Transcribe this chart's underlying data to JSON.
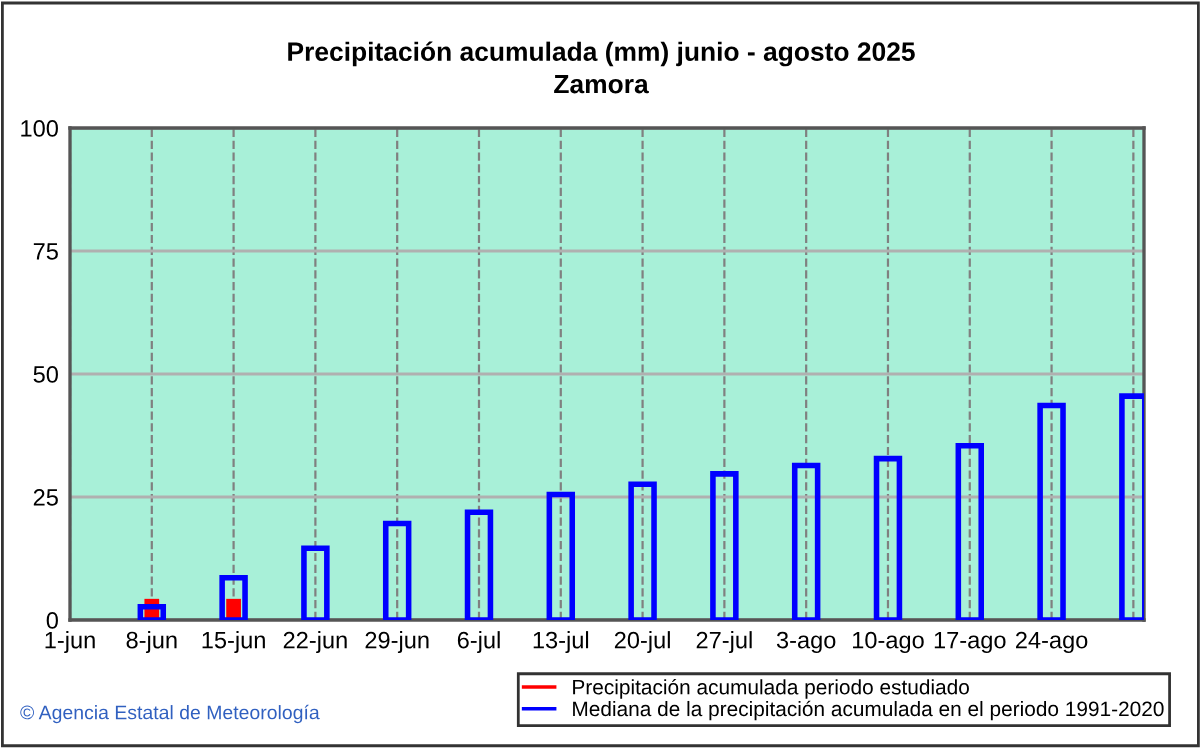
{
  "chart_data": {
    "type": "bar",
    "title": "Precipitación acumulada (mm) junio - agosto 2025\nZamora",
    "categories": [
      "1-jun",
      "8-jun",
      "15-jun",
      "22-jun",
      "29-jun",
      "6-jul",
      "13-jul",
      "20-jul",
      "27-jul",
      "3-ago",
      "10-ago",
      "17-ago",
      "24-ago",
      null
    ],
    "series": [
      {
        "name": "Precipitación acumulada periodo estudiado",
        "color": "#ff0000",
        "values": [
          null,
          4.3,
          4.3,
          null,
          null,
          null,
          null,
          null,
          null,
          null,
          null,
          null,
          null,
          null
        ]
      },
      {
        "name": "Mediana de la precipitación acumulada en el periodo 1991-2020",
        "color": "#0000ff",
        "values": [
          null,
          2.7,
          8.6,
          14.6,
          19.6,
          21.9,
          25.5,
          27.6,
          29.7,
          31.4,
          32.8,
          35.4,
          43.6,
          45.5
        ]
      }
    ],
    "ylim": [
      0,
      100
    ],
    "yticks": [
      0,
      25,
      50,
      75,
      100
    ],
    "grid": true,
    "legend": "bottom",
    "annotations": [
      "© Agencia Estatal de Meteorología"
    ]
  }
}
